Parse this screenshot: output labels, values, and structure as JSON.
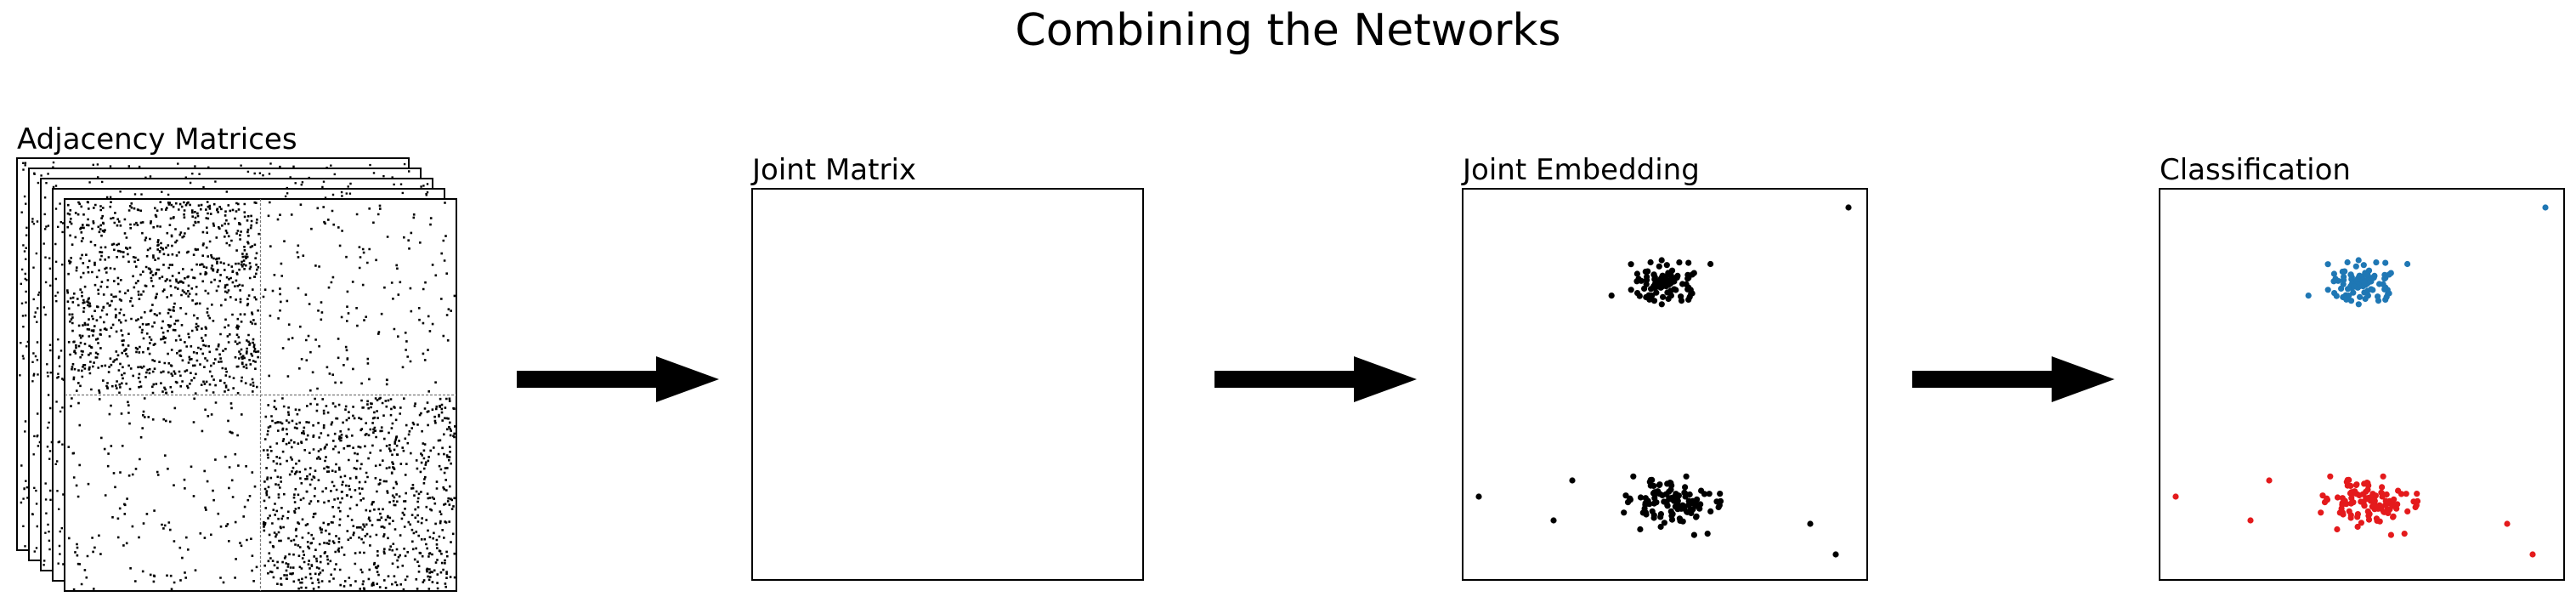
{
  "title": "Combining the Networks",
  "panels": {
    "adjacency": {
      "label": "Adjacency Matrices",
      "stack_count": 5
    },
    "joint_matrix": {
      "label": "Joint Matrix"
    },
    "joint_embedding": {
      "label": "Joint Embedding"
    },
    "classification": {
      "label": "Classification"
    }
  },
  "colors": {
    "dots": "#000000",
    "class_a": "#1f77b4",
    "class_b": "#e41a1c",
    "heat_pos": "#e8866a",
    "heat_neg": "#4a5bd0"
  },
  "icons": [
    "right-arrow-icon",
    "right-arrow-icon",
    "right-arrow-icon"
  ]
}
